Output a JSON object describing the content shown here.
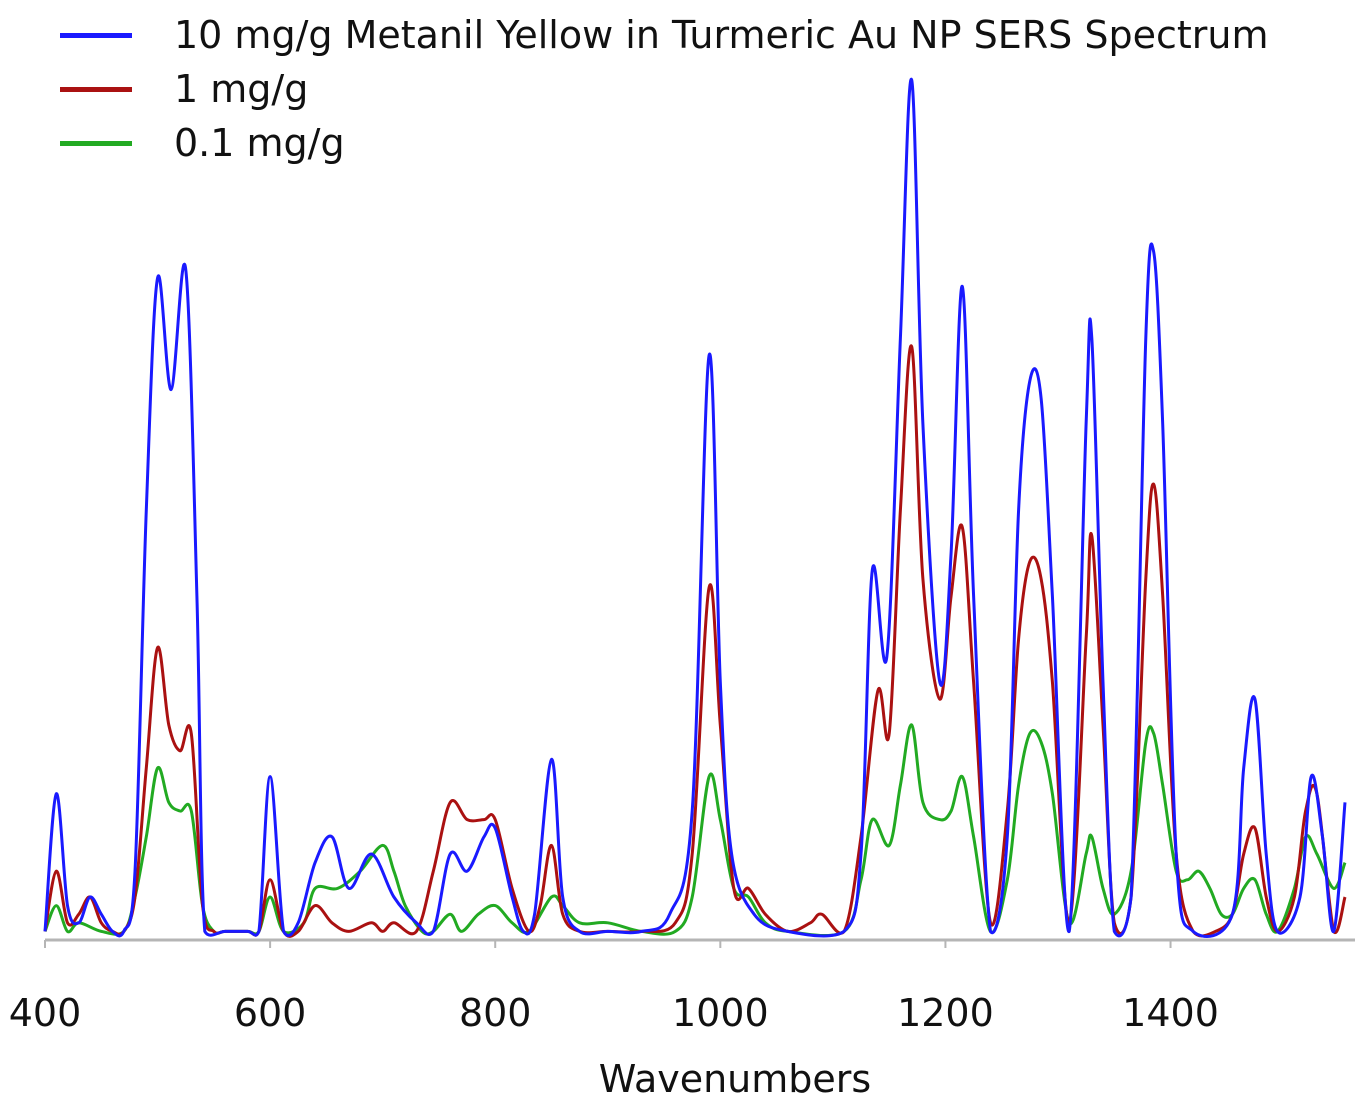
{
  "chart_data": {
    "type": "line",
    "title": "",
    "xlabel": "Wavenumbers",
    "ylabel": "",
    "xlim": [
      400,
      1555
    ],
    "ylim": [
      0,
      100
    ],
    "x_ticks": [
      400,
      600,
      800,
      1000,
      1200,
      1400
    ],
    "grid": false,
    "legend_position": "top-left",
    "series": [
      {
        "name": "10 mg/g Metanil Yellow in Turmeric Au NP SERS Spectrum",
        "color": "#1a1aff",
        "points": [
          [
            400,
            1
          ],
          [
            410,
            17
          ],
          [
            420,
            4
          ],
          [
            430,
            2
          ],
          [
            440,
            5
          ],
          [
            450,
            3
          ],
          [
            460,
            1
          ],
          [
            470,
            1
          ],
          [
            480,
            8
          ],
          [
            490,
            50
          ],
          [
            500,
            77
          ],
          [
            512,
            64
          ],
          [
            525,
            78
          ],
          [
            535,
            40
          ],
          [
            542,
            1
          ],
          [
            560,
            1
          ],
          [
            580,
            1
          ],
          [
            590,
            1
          ],
          [
            600,
            19
          ],
          [
            612,
            1
          ],
          [
            625,
            2
          ],
          [
            640,
            9
          ],
          [
            655,
            12
          ],
          [
            670,
            6
          ],
          [
            690,
            10
          ],
          [
            710,
            5
          ],
          [
            730,
            2
          ],
          [
            745,
            1
          ],
          [
            760,
            10
          ],
          [
            775,
            8
          ],
          [
            790,
            12
          ],
          [
            800,
            13
          ],
          [
            815,
            5
          ],
          [
            825,
            1
          ],
          [
            835,
            3
          ],
          [
            850,
            21
          ],
          [
            860,
            5
          ],
          [
            875,
            1
          ],
          [
            900,
            1
          ],
          [
            930,
            1
          ],
          [
            955,
            3
          ],
          [
            975,
            15
          ],
          [
            990,
            68
          ],
          [
            1000,
            30
          ],
          [
            1010,
            10
          ],
          [
            1030,
            3
          ],
          [
            1060,
            1
          ],
          [
            1110,
            1
          ],
          [
            1125,
            10
          ],
          [
            1135,
            43
          ],
          [
            1148,
            33
          ],
          [
            1160,
            70
          ],
          [
            1170,
            100
          ],
          [
            1180,
            60
          ],
          [
            1195,
            30
          ],
          [
            1205,
            45
          ],
          [
            1215,
            76
          ],
          [
            1225,
            40
          ],
          [
            1240,
            1
          ],
          [
            1255,
            12
          ],
          [
            1265,
            50
          ],
          [
            1275,
            65
          ],
          [
            1285,
            63
          ],
          [
            1295,
            40
          ],
          [
            1310,
            1
          ],
          [
            1325,
            60
          ],
          [
            1330,
            70
          ],
          [
            1340,
            30
          ],
          [
            1350,
            1
          ],
          [
            1365,
            5
          ],
          [
            1378,
            70
          ],
          [
            1385,
            80
          ],
          [
            1393,
            60
          ],
          [
            1405,
            10
          ],
          [
            1420,
            1
          ],
          [
            1455,
            3
          ],
          [
            1465,
            20
          ],
          [
            1475,
            28
          ],
          [
            1485,
            10
          ],
          [
            1495,
            1
          ],
          [
            1515,
            5
          ],
          [
            1525,
            19
          ],
          [
            1535,
            12
          ],
          [
            1545,
            1
          ],
          [
            1555,
            16
          ]
        ]
      },
      {
        "name": "1 mg/g",
        "color": "#aa1111",
        "points": [
          [
            400,
            1
          ],
          [
            410,
            8
          ],
          [
            420,
            2
          ],
          [
            430,
            3
          ],
          [
            440,
            5
          ],
          [
            450,
            2
          ],
          [
            460,
            1
          ],
          [
            470,
            1
          ],
          [
            480,
            5
          ],
          [
            490,
            20
          ],
          [
            500,
            34
          ],
          [
            510,
            25
          ],
          [
            520,
            22
          ],
          [
            530,
            24
          ],
          [
            540,
            4
          ],
          [
            550,
            1
          ],
          [
            560,
            1
          ],
          [
            580,
            1
          ],
          [
            590,
            1
          ],
          [
            600,
            7
          ],
          [
            612,
            1
          ],
          [
            625,
            1
          ],
          [
            640,
            4
          ],
          [
            655,
            2
          ],
          [
            670,
            1
          ],
          [
            690,
            2
          ],
          [
            700,
            1
          ],
          [
            710,
            2
          ],
          [
            730,
            1
          ],
          [
            745,
            8
          ],
          [
            760,
            16
          ],
          [
            775,
            14
          ],
          [
            790,
            14
          ],
          [
            800,
            14
          ],
          [
            815,
            6
          ],
          [
            830,
            1
          ],
          [
            840,
            4
          ],
          [
            850,
            11
          ],
          [
            860,
            3
          ],
          [
            875,
            1
          ],
          [
            900,
            1
          ],
          [
            930,
            1
          ],
          [
            960,
            2
          ],
          [
            975,
            10
          ],
          [
            990,
            41
          ],
          [
            1000,
            25
          ],
          [
            1012,
            6
          ],
          [
            1025,
            6
          ],
          [
            1040,
            3
          ],
          [
            1060,
            1
          ],
          [
            1080,
            2
          ],
          [
            1090,
            3
          ],
          [
            1110,
            1
          ],
          [
            1125,
            12
          ],
          [
            1140,
            29
          ],
          [
            1150,
            24
          ],
          [
            1160,
            50
          ],
          [
            1170,
            69
          ],
          [
            1180,
            42
          ],
          [
            1195,
            28
          ],
          [
            1205,
            40
          ],
          [
            1215,
            48
          ],
          [
            1225,
            30
          ],
          [
            1240,
            2
          ],
          [
            1255,
            15
          ],
          [
            1265,
            35
          ],
          [
            1275,
            44
          ],
          [
            1285,
            42
          ],
          [
            1295,
            30
          ],
          [
            1310,
            2
          ],
          [
            1325,
            35
          ],
          [
            1330,
            47
          ],
          [
            1340,
            25
          ],
          [
            1350,
            2
          ],
          [
            1365,
            5
          ],
          [
            1378,
            42
          ],
          [
            1385,
            53
          ],
          [
            1393,
            40
          ],
          [
            1405,
            10
          ],
          [
            1420,
            1
          ],
          [
            1440,
            1
          ],
          [
            1455,
            3
          ],
          [
            1465,
            10
          ],
          [
            1475,
            13
          ],
          [
            1485,
            5
          ],
          [
            1495,
            1
          ],
          [
            1510,
            5
          ],
          [
            1520,
            15
          ],
          [
            1530,
            17
          ],
          [
            1545,
            1
          ],
          [
            1555,
            5
          ]
        ]
      },
      {
        "name": "0.1 mg/g",
        "color": "#22aa22",
        "points": [
          [
            400,
            1
          ],
          [
            410,
            4
          ],
          [
            420,
            1
          ],
          [
            430,
            2
          ],
          [
            450,
            1
          ],
          [
            470,
            1
          ],
          [
            480,
            5
          ],
          [
            490,
            12
          ],
          [
            500,
            20
          ],
          [
            510,
            16
          ],
          [
            520,
            15
          ],
          [
            530,
            15
          ],
          [
            540,
            4
          ],
          [
            550,
            1
          ],
          [
            560,
            1
          ],
          [
            580,
            1
          ],
          [
            590,
            1
          ],
          [
            600,
            5
          ],
          [
            612,
            1
          ],
          [
            630,
            2
          ],
          [
            640,
            6
          ],
          [
            660,
            6
          ],
          [
            680,
            8
          ],
          [
            700,
            11
          ],
          [
            710,
            8
          ],
          [
            720,
            4
          ],
          [
            735,
            1
          ],
          [
            745,
            1
          ],
          [
            760,
            3
          ],
          [
            770,
            1
          ],
          [
            785,
            3
          ],
          [
            800,
            4
          ],
          [
            815,
            2
          ],
          [
            830,
            1
          ],
          [
            850,
            5
          ],
          [
            860,
            4
          ],
          [
            875,
            2
          ],
          [
            900,
            2
          ],
          [
            930,
            1
          ],
          [
            960,
            1
          ],
          [
            975,
            5
          ],
          [
            990,
            19
          ],
          [
            1000,
            14
          ],
          [
            1012,
            6
          ],
          [
            1025,
            5
          ],
          [
            1040,
            2
          ],
          [
            1060,
            1
          ],
          [
            1110,
            1
          ],
          [
            1125,
            7
          ],
          [
            1135,
            14
          ],
          [
            1150,
            11
          ],
          [
            1160,
            18
          ],
          [
            1170,
            25
          ],
          [
            1180,
            16
          ],
          [
            1195,
            14
          ],
          [
            1205,
            15
          ],
          [
            1215,
            19
          ],
          [
            1225,
            12
          ],
          [
            1240,
            1
          ],
          [
            1255,
            7
          ],
          [
            1265,
            18
          ],
          [
            1275,
            24
          ],
          [
            1285,
            23
          ],
          [
            1295,
            17
          ],
          [
            1310,
            2
          ],
          [
            1325,
            10
          ],
          [
            1330,
            12
          ],
          [
            1340,
            6
          ],
          [
            1350,
            3
          ],
          [
            1365,
            8
          ],
          [
            1378,
            23
          ],
          [
            1385,
            24
          ],
          [
            1393,
            18
          ],
          [
            1405,
            8
          ],
          [
            1415,
            7
          ],
          [
            1425,
            8
          ],
          [
            1435,
            6
          ],
          [
            1445,
            3
          ],
          [
            1455,
            3
          ],
          [
            1465,
            6
          ],
          [
            1475,
            7
          ],
          [
            1485,
            3
          ],
          [
            1495,
            1
          ],
          [
            1510,
            6
          ],
          [
            1520,
            12
          ],
          [
            1530,
            10
          ],
          [
            1545,
            6
          ],
          [
            1555,
            9
          ]
        ]
      }
    ]
  }
}
